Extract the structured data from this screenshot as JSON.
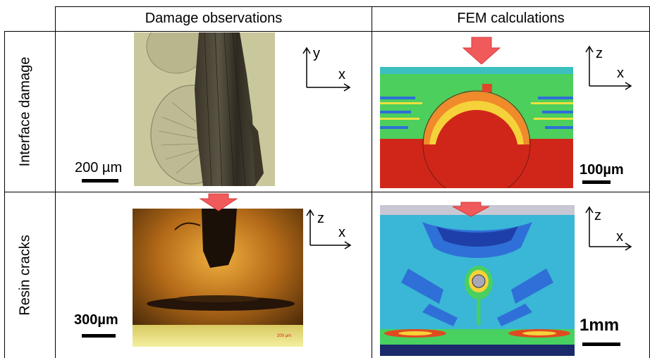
{
  "header": {
    "col1": "Damage observations",
    "col2": "FEM calculations"
  },
  "rows": [
    {
      "label": "Interface damage",
      "observation": {
        "scale_label": "200 µm",
        "axis_vertical": "y",
        "axis_horizontal": "x"
      },
      "fem": {
        "scale_label": "100µm",
        "axis_vertical": "z",
        "axis_horizontal": "x"
      }
    },
    {
      "label": "Resin cracks",
      "observation": {
        "scale_label": "300µm",
        "axis_vertical": "z",
        "axis_horizontal": "x",
        "embedded_scale": "200 µm"
      },
      "fem": {
        "scale_label": "1mm",
        "axis_vertical": "z",
        "axis_horizontal": "x"
      }
    }
  ],
  "colors": {
    "arrow_fill": "#f05a5a",
    "arrow_stroke": "#d83a3a",
    "fem_red": "#d0261a",
    "fem_green": "#48d060",
    "fem_blue": "#2f6fd8"
  }
}
